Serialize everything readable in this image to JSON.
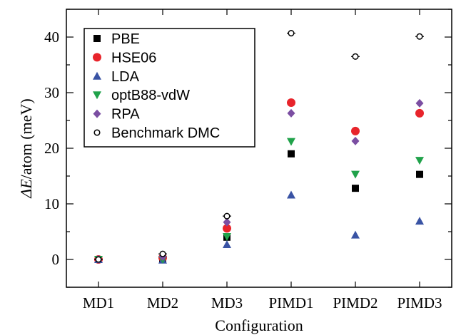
{
  "chart_data": {
    "type": "scatter",
    "categories": [
      "MD1",
      "MD2",
      "MD3",
      "PIMD1",
      "PIMD2",
      "PIMD3"
    ],
    "xlabel": "Configuration",
    "ylabel_symbol": "ΔE",
    "ylabel_rest": "/atom (meV)",
    "ylim": [
      -5,
      45
    ],
    "yticks": [
      0,
      10,
      20,
      30,
      40
    ],
    "grid": false,
    "legend_position": "top-left",
    "series": [
      {
        "name": "PBE",
        "marker": "square",
        "color": "#000000",
        "values": [
          0.0,
          0.1,
          4.0,
          19.0,
          12.8,
          15.3
        ]
      },
      {
        "name": "HSE06",
        "marker": "circle",
        "color": "#e8242b",
        "values": [
          0.0,
          0.3,
          5.6,
          28.2,
          23.1,
          26.3
        ]
      },
      {
        "name": "LDA",
        "marker": "triangle-up",
        "color": "#3953a4",
        "values": [
          0.0,
          -0.1,
          2.7,
          11.6,
          4.4,
          6.9
        ]
      },
      {
        "name": "optB88-vdW",
        "marker": "triangle-down",
        "color": "#20a24a",
        "values": [
          0.0,
          0.0,
          4.1,
          21.2,
          15.3,
          17.8
        ]
      },
      {
        "name": "RPA",
        "marker": "diamond",
        "color": "#7b4ea2",
        "values": [
          0.0,
          0.5,
          6.7,
          26.3,
          21.3,
          28.1
        ]
      },
      {
        "name": "Benchmark DMC",
        "marker": "open-circle",
        "color": "#000000",
        "values": [
          0.0,
          1.0,
          7.8,
          40.7,
          36.5,
          40.1
        ],
        "errorbars": true
      }
    ]
  }
}
